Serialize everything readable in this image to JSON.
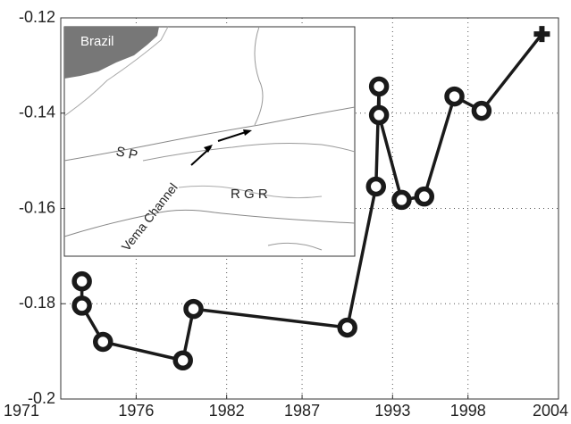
{
  "chart_data": {
    "type": "line",
    "x": [
      1972.4,
      1972.4,
      1973.8,
      1979.1,
      1979.8,
      1990.0,
      1991.9,
      1992.1,
      1992.1,
      1993.6,
      1995.1,
      1997.1,
      1998.9,
      2002.9
    ],
    "series": [
      {
        "color": "#1a1a1a",
        "values": [
          -0.1753,
          -0.1804,
          -0.188,
          -0.1919,
          -0.1811,
          -0.185,
          -0.1554,
          -0.1344,
          -0.1404,
          -0.1582,
          -0.1575,
          -0.1365,
          -0.1395,
          -0.1234
        ],
        "markers": [
          "o",
          "o",
          "o",
          "o",
          "o",
          "o",
          "o",
          "o",
          "o",
          "o",
          "o",
          "o",
          "o",
          "+"
        ]
      }
    ],
    "xlim": [
      1971,
      2004
    ],
    "xticks": [
      1971,
      1976,
      1982,
      1987,
      1993,
      1998,
      2004
    ],
    "ylim": [
      -0.2,
      -0.12
    ],
    "yticks": [
      -0.2,
      -0.18,
      -0.16,
      -0.14,
      -0.12
    ],
    "grid": true,
    "inset_map": {
      "labels": [
        "Brazil",
        "S P",
        "R G R",
        "Vema Channel"
      ]
    }
  }
}
